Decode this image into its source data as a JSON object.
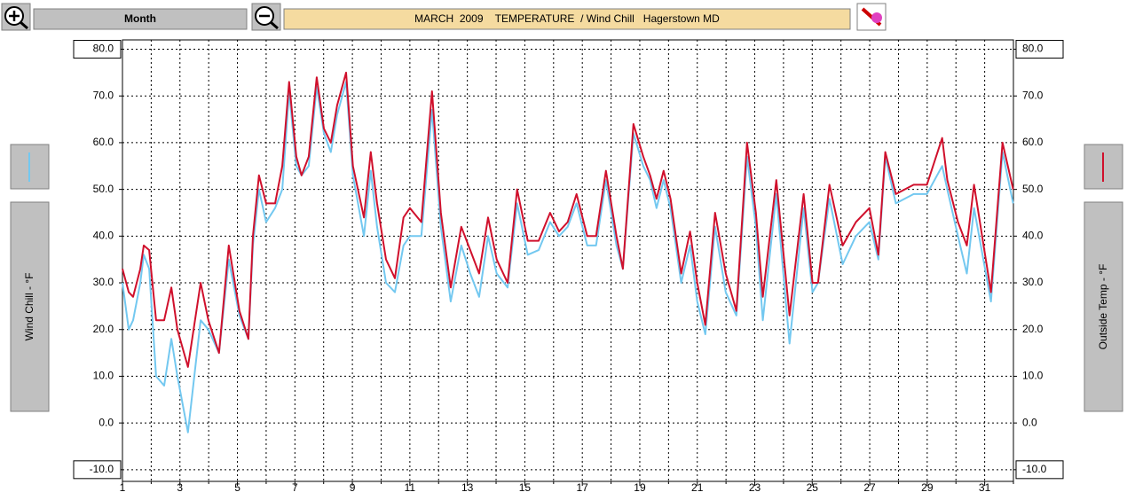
{
  "toolbar": {
    "period": "Month"
  },
  "chart_data": {
    "type": "line",
    "title": "MARCH  2009    TEMPERATURE  / Wind Chill   Hagerstown MD",
    "y_label": "Wind Chill - °F",
    "y2_label": "Outside Temp - °F",
    "x": [
      1.0,
      1.22,
      1.37,
      1.62,
      1.74,
      1.93,
      2.17,
      2.45,
      2.7,
      2.91,
      3.28,
      3.72,
      3.99,
      4.36,
      4.7,
      5.07,
      5.38,
      5.54,
      5.75,
      6.0,
      6.31,
      6.56,
      6.8,
      7.05,
      7.23,
      7.48,
      7.76,
      8.01,
      8.25,
      8.47,
      8.78,
      9.02,
      9.4,
      9.64,
      9.86,
      10.17,
      10.48,
      10.78,
      11.0,
      11.4,
      11.77,
      12.08,
      12.42,
      12.79,
      13.1,
      13.41,
      13.72,
      14.02,
      14.4,
      14.73,
      15.1,
      15.48,
      15.88,
      16.19,
      16.49,
      16.8,
      17.17,
      17.48,
      17.82,
      18.19,
      18.41,
      18.78,
      19.12,
      19.36,
      19.58,
      19.83,
      20.07,
      20.44,
      20.75,
      21.0,
      21.28,
      21.62,
      21.99,
      22.36,
      22.73,
      23.04,
      23.28,
      23.75,
      24.21,
      24.7,
      25.01,
      25.2,
      25.6,
      26.06,
      26.52,
      26.99,
      27.3,
      27.54,
      27.91,
      28.53,
      28.99,
      29.52,
      29.7,
      30.07,
      30.38,
      30.63,
      31.22,
      31.62,
      31.99
    ],
    "series": [
      {
        "color": "#73c8f0",
        "values": [
          30,
          20,
          22,
          30,
          36,
          33,
          10,
          8,
          18,
          10,
          -2,
          22,
          20,
          15,
          35,
          23,
          18,
          38,
          50,
          43,
          46,
          50,
          71,
          55,
          53,
          55,
          72,
          62,
          58,
          66,
          73,
          53,
          40,
          54,
          42,
          30,
          28,
          38,
          40,
          40,
          67,
          42,
          26,
          38,
          32,
          27,
          40,
          32,
          29,
          47,
          36,
          37,
          43,
          40,
          42,
          47,
          38,
          38,
          52,
          38,
          33,
          62,
          55,
          52,
          46,
          52,
          46,
          30,
          38,
          26,
          19,
          42,
          28,
          23,
          57,
          42,
          22,
          49,
          17,
          46,
          28,
          30,
          48,
          34,
          40,
          43,
          35,
          57,
          47,
          49,
          49,
          55,
          50,
          40,
          32,
          46,
          26,
          58,
          47
        ]
      },
      {
        "color": "#d0102c",
        "axis": "y2",
        "values": [
          33,
          28,
          27,
          33,
          38,
          37,
          22,
          22,
          29,
          20,
          12,
          30,
          22,
          15,
          38,
          24,
          18,
          40,
          53,
          47,
          47,
          55,
          73,
          57,
          53,
          57,
          74,
          63,
          60,
          68,
          75,
          55,
          44,
          58,
          47,
          35,
          31,
          44,
          46,
          43,
          71,
          45,
          29,
          42,
          37,
          32,
          44,
          35,
          30,
          50,
          39,
          39,
          45,
          41,
          43,
          49,
          40,
          40,
          54,
          40,
          33,
          64,
          57,
          53,
          48,
          54,
          48,
          32,
          41,
          30,
          21,
          45,
          32,
          24,
          60,
          45,
          27,
          52,
          23,
          49,
          30,
          30,
          51,
          38,
          43,
          46,
          36,
          58,
          49,
          51,
          51,
          61,
          52,
          43,
          38,
          51,
          28,
          60,
          50
        ]
      }
    ],
    "xlim": [
      1,
      32
    ],
    "xticks": [
      1,
      3,
      5,
      7,
      9,
      11,
      13,
      15,
      17,
      19,
      21,
      23,
      25,
      27,
      29,
      31
    ],
    "xminorticks": [
      2,
      4,
      6,
      8,
      10,
      12,
      14,
      16,
      18,
      20,
      22,
      24,
      26,
      28,
      30,
      32
    ],
    "ylim": [
      -12.5,
      82
    ],
    "yticks": [
      {
        "value": -10,
        "label": "-10.0"
      },
      {
        "value": 0,
        "label": "0.0"
      },
      {
        "value": 10,
        "label": "10.0"
      },
      {
        "value": 20,
        "label": "20.0"
      },
      {
        "value": 30,
        "label": "30.0"
      },
      {
        "value": 40,
        "label": "40.0"
      },
      {
        "value": 50,
        "label": "50.0"
      },
      {
        "value": 60,
        "label": "60.0"
      },
      {
        "value": 70,
        "label": "70.0"
      },
      {
        "value": 80,
        "label": "80.0"
      }
    ],
    "y2lim": [
      -12.5,
      82
    ],
    "y2ticks": [
      {
        "value": -10,
        "label": "-10.0"
      },
      {
        "value": 0,
        "label": "0.0"
      },
      {
        "value": 10,
        "label": "10.0"
      },
      {
        "value": 20,
        "label": "20.0"
      },
      {
        "value": 30,
        "label": "30.0"
      },
      {
        "value": 40,
        "label": "40.0"
      },
      {
        "value": 50,
        "label": "50.0"
      },
      {
        "value": 60,
        "label": "60.0"
      },
      {
        "value": 70,
        "label": "70.0"
      },
      {
        "value": 80,
        "label": "80.0"
      }
    ],
    "grid": true
  }
}
